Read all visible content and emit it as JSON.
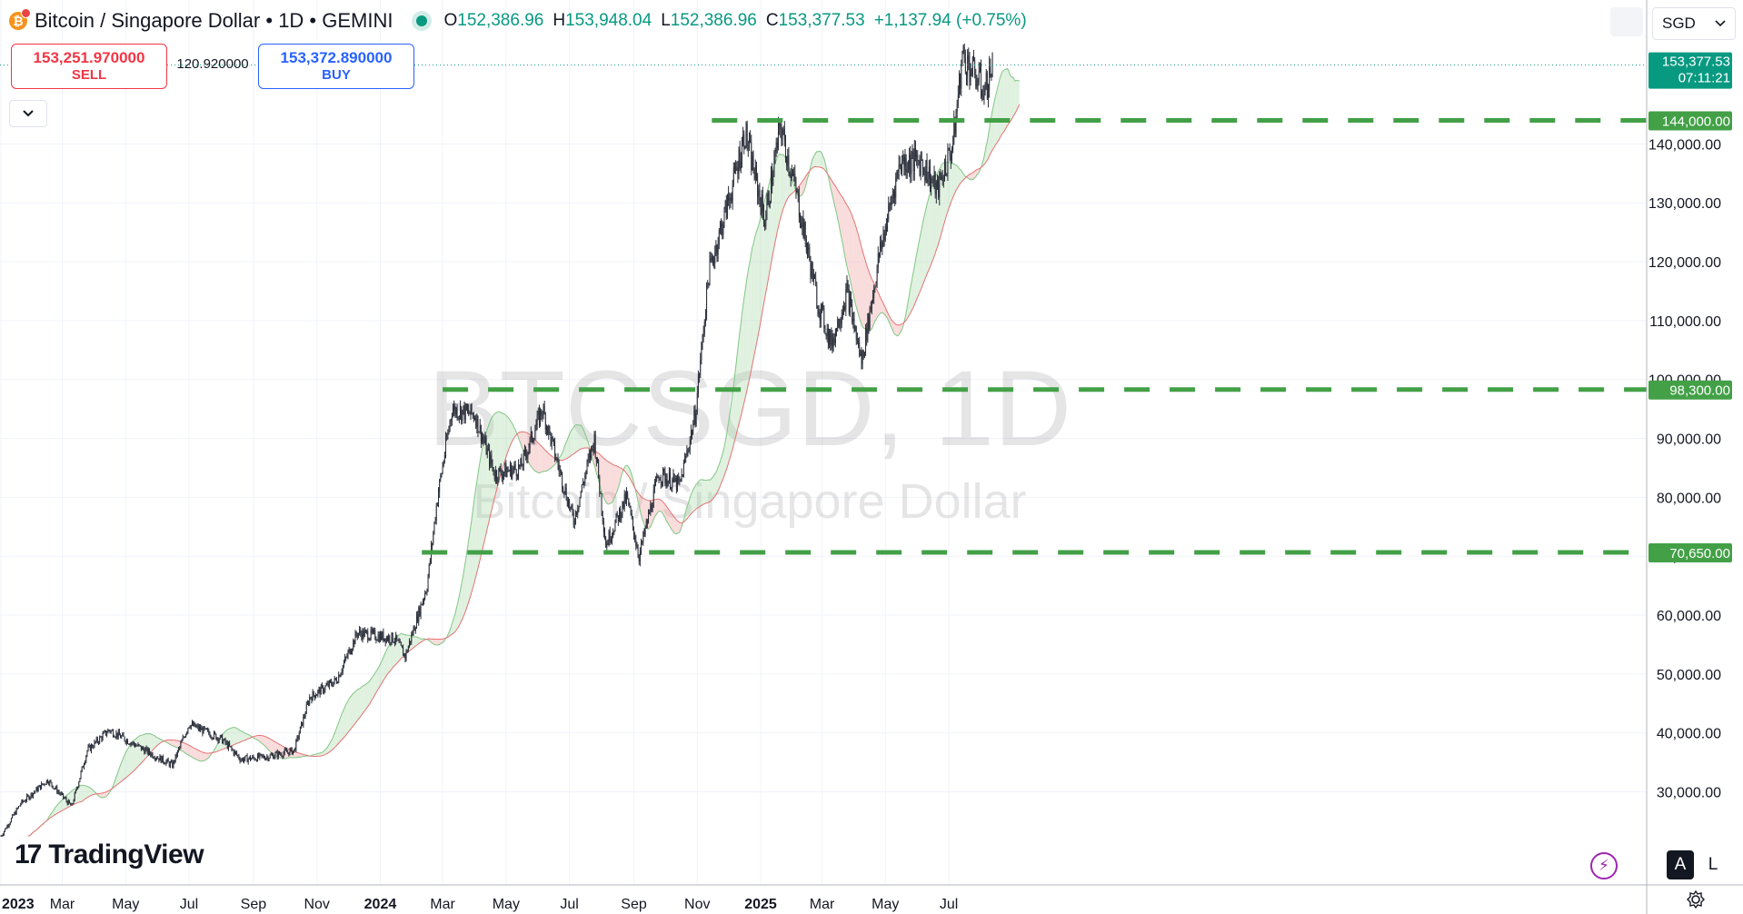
{
  "header": {
    "symbol": "Bitcoin / Singapore Dollar",
    "separator": " • ",
    "interval": "1D",
    "exchange": "GEMINI",
    "open_label": "O",
    "open": "152,386.96",
    "high_label": "H",
    "high": "153,948.04",
    "low_label": "L",
    "low": "152,386.96",
    "close_label": "C",
    "close": "153,377.53",
    "change": "+1,137.94 (+0.75%)"
  },
  "trade": {
    "sell_price": "153,251.970000",
    "sell_label": "SELL",
    "spread": "120.920000",
    "buy_price": "153,372.890000",
    "buy_label": "BUY"
  },
  "currency_selector": "SGD",
  "watermark": {
    "ticker": "BTCSGD, 1D",
    "description": "Bitcoin / Singapore Dollar"
  },
  "brand": "TradingView",
  "scale_buttons": {
    "auto": "A",
    "log": "L"
  },
  "colors": {
    "up": "#089981",
    "down": "#f23645",
    "level": "#43a047",
    "cloud_bull": "#a5d6a7",
    "cloud_bear": "#ef9a9a",
    "candle": "#2a2e39"
  },
  "chart_data": {
    "type": "candlestick",
    "currency": "SGD",
    "x_range": [
      "2023-01-01",
      "2025-08-20"
    ],
    "y_range": [
      20000,
      160000
    ],
    "y_ticks": [
      "30,000.00",
      "40,000.00",
      "50,000.00",
      "60,000.00",
      "70,000.00",
      "80,000.00",
      "90,000.00",
      "100,000.00",
      "110,000.00",
      "120,000.00",
      "130,000.00",
      "140,000.00"
    ],
    "x_ticks": [
      {
        "label": "2023",
        "date": "2023-01-01",
        "bold": true
      },
      {
        "label": "Mar",
        "date": "2023-03-01"
      },
      {
        "label": "May",
        "date": "2023-05-01"
      },
      {
        "label": "Jul",
        "date": "2023-07-01"
      },
      {
        "label": "Sep",
        "date": "2023-09-01"
      },
      {
        "label": "Nov",
        "date": "2023-11-01"
      },
      {
        "label": "2024",
        "date": "2024-01-01",
        "bold": true
      },
      {
        "label": "Mar",
        "date": "2024-03-01"
      },
      {
        "label": "May",
        "date": "2024-05-01"
      },
      {
        "label": "Jul",
        "date": "2024-07-01"
      },
      {
        "label": "Sep",
        "date": "2024-09-01"
      },
      {
        "label": "Nov",
        "date": "2024-11-01"
      },
      {
        "label": "2025",
        "date": "2025-01-01",
        "bold": true
      },
      {
        "label": "Mar",
        "date": "2025-03-01"
      },
      {
        "label": "May",
        "date": "2025-05-01"
      },
      {
        "label": "Jul",
        "date": "2025-07-01"
      }
    ],
    "price_path": [
      [
        "2023-01-01",
        22500
      ],
      [
        "2023-01-20",
        28000
      ],
      [
        "2023-02-15",
        32000
      ],
      [
        "2023-03-10",
        27500
      ],
      [
        "2023-03-25",
        37000
      ],
      [
        "2023-04-15",
        40500
      ],
      [
        "2023-05-15",
        37500
      ],
      [
        "2023-06-15",
        34500
      ],
      [
        "2023-07-01",
        41500
      ],
      [
        "2023-08-01",
        39000
      ],
      [
        "2023-08-20",
        35500
      ],
      [
        "2023-09-15",
        36000
      ],
      [
        "2023-10-10",
        37000
      ],
      [
        "2023-10-25",
        46000
      ],
      [
        "2023-11-20",
        49000
      ],
      [
        "2023-12-10",
        57000
      ],
      [
        "2024-01-15",
        56000
      ],
      [
        "2024-01-25",
        53000
      ],
      [
        "2024-02-15",
        65000
      ],
      [
        "2024-02-25,",
        80000
      ],
      [
        "2024-03-10",
        95000
      ],
      [
        "2024-04-01",
        94000
      ],
      [
        "2024-04-20",
        84000
      ],
      [
        "2024-05-15",
        85000
      ],
      [
        "2024-06-05",
        95000
      ],
      [
        "2024-07-05",
        76000
      ],
      [
        "2024-07-25",
        90000
      ],
      [
        "2024-08-05",
        72000
      ],
      [
        "2024-08-25",
        80000
      ],
      [
        "2024-09-06",
        70000
      ],
      [
        "2024-09-25",
        84000
      ],
      [
        "2024-10-15",
        82000
      ],
      [
        "2024-10-30",
        94000
      ],
      [
        "2024-11-12",
        118000
      ],
      [
        "2024-12-05",
        133000
      ],
      [
        "2024-12-17",
        142000
      ],
      [
        "2025-01-05",
        127000
      ],
      [
        "2025-01-20",
        143000
      ],
      [
        "2025-02-05",
        131000
      ],
      [
        "2025-02-25",
        113000
      ],
      [
        "2025-03-10",
        106000
      ],
      [
        "2025-03-25",
        115000
      ],
      [
        "2025-04-08",
        103000
      ],
      [
        "2025-04-25",
        121000
      ],
      [
        "2025-05-15",
        137000
      ],
      [
        "2025-06-05",
        137000
      ],
      [
        "2025-06-20",
        132000
      ],
      [
        "2025-07-05",
        140000
      ],
      [
        "2025-07-14",
        155000
      ],
      [
        "2025-07-25",
        152000
      ],
      [
        "2025-08-05",
        149000
      ],
      [
        "2025-08-12",
        153377
      ]
    ],
    "levels": [
      {
        "value": 144000,
        "label": "144,000.00",
        "start": "2024-11-15"
      },
      {
        "value": 98300,
        "label": "98,300.00",
        "start": "2024-03-01"
      },
      {
        "value": 70650,
        "label": "70,650.00",
        "start": "2024-02-10"
      }
    ],
    "last_price": {
      "value": 153377.53,
      "label": "153,377.53",
      "countdown": "07:11:21"
    },
    "indicator": "Ichimoku cloud (Senkou span A/B shaded green/red)"
  }
}
